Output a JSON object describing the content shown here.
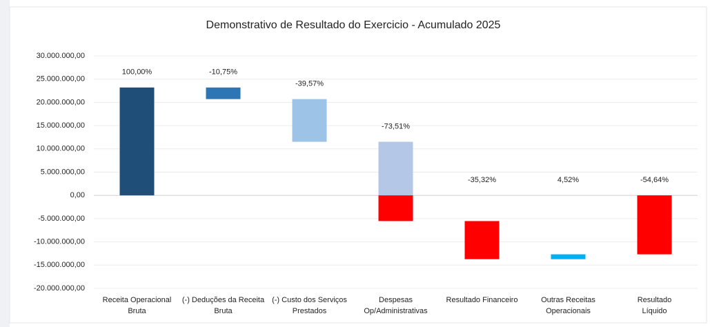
{
  "chart_data": {
    "type": "waterfall",
    "title": "Demonstrativo de Resultado do Exercicio - Acumulado 2025",
    "categories": [
      [
        "Receita Operacional",
        "Bruta"
      ],
      [
        "(-) Deduções da Receita",
        "Bruta"
      ],
      [
        "(-) Custo dos Serviços",
        "Prestados"
      ],
      [
        "Despesas",
        "Op/Administrativas"
      ],
      [
        "Resultado Financeiro"
      ],
      [
        "Outras Receitas",
        "Operacionais"
      ],
      [
        "Resultado",
        "Líquido"
      ]
    ],
    "measures": [
      "absolute",
      "relative",
      "relative",
      "relative",
      "relative",
      "relative",
      "total"
    ],
    "values": [
      23200000,
      -2494000,
      -9180000,
      -17054000,
      -8194000,
      1049000,
      -12676000
    ],
    "data_labels": [
      "100,00%",
      "-10,75%",
      "-39,57%",
      "-73,51%",
      "-35,32%",
      "4,52%",
      "-54,64%"
    ],
    "colors": [
      "#1f4e79",
      "#2e75b6",
      "#9dc3e6",
      [
        "#b4c7e7",
        "#ff0000"
      ],
      "#ff0000",
      "#00b0f0",
      "#ff0000"
    ],
    "ylim": [
      -20000000,
      30000000
    ],
    "yticks": [
      {
        "value": -20000000,
        "label": "-20.000.000,00"
      },
      {
        "value": -15000000,
        "label": "-15.000.000,00"
      },
      {
        "value": -10000000,
        "label": "-10.000.000,00"
      },
      {
        "value": -5000000,
        "label": "-5.000.000,00"
      },
      {
        "value": 0,
        "label": "0,00"
      },
      {
        "value": 5000000,
        "label": "5.000.000,00"
      },
      {
        "value": 10000000,
        "label": "10.000.000,00"
      },
      {
        "value": 15000000,
        "label": "15.000.000,00"
      },
      {
        "value": 20000000,
        "label": "20.000.000,00"
      },
      {
        "value": 25000000,
        "label": "25.000.000,00"
      },
      {
        "value": 30000000,
        "label": "30.000.000,00"
      }
    ],
    "grid": true
  }
}
